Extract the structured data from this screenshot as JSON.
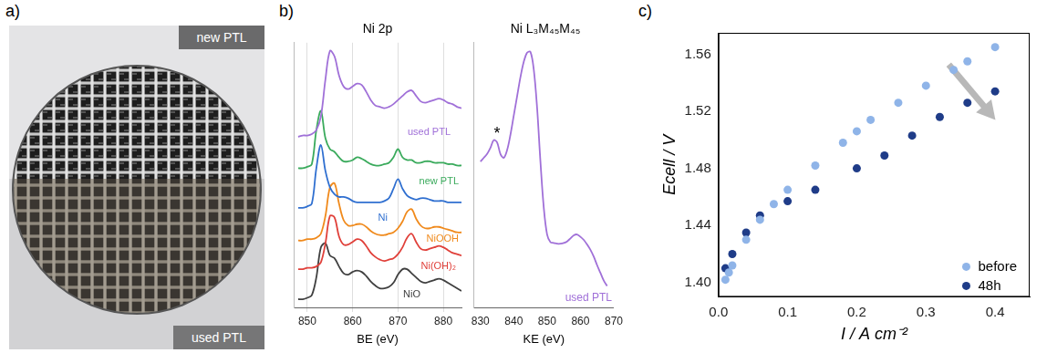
{
  "photo": {
    "panel": "a)",
    "labels": [
      "new PTL",
      "used PTL"
    ]
  },
  "chart_data": [
    {
      "type": "line",
      "panel": "b)",
      "title": "Ni 2p",
      "x_label": "BE (eV)",
      "x": [
        848,
        849,
        850,
        851,
        852,
        853,
        854,
        855,
        856,
        857,
        858,
        859,
        860,
        861,
        862,
        863,
        864,
        865,
        866,
        867,
        868,
        869,
        870,
        871,
        872,
        873,
        874,
        875,
        876,
        877,
        878,
        879,
        880,
        881,
        882,
        883,
        884
      ],
      "xlim": [
        847,
        884
      ],
      "xticks": [
        850,
        860,
        870,
        880
      ],
      "ylim": [
        8,
        202
      ],
      "tick_labels": "x",
      "grid": true,
      "series": [
        {
          "name": "used PTL",
          "color": "#a070d8",
          "values": [
            133,
            134,
            134,
            135,
            138,
            148,
            175,
            196,
            192,
            178,
            170,
            168,
            170,
            172,
            171,
            166,
            160,
            156,
            155,
            154,
            155,
            157,
            160,
            163,
            166,
            167,
            163,
            159,
            158,
            159,
            160,
            161,
            160,
            158,
            157,
            155,
            154
          ]
        },
        {
          "name": "new PTL",
          "color": "#3aaa5c",
          "values": [
            110,
            110,
            111,
            113,
            138,
            152,
            132,
            124,
            122,
            118,
            115,
            115,
            116,
            118,
            117,
            115,
            113,
            112,
            112,
            113,
            114,
            118,
            124,
            118,
            116,
            116,
            114,
            114,
            115,
            115,
            114,
            114,
            114,
            113,
            113,
            112,
            112
          ]
        },
        {
          "name": "Ni",
          "color": "#2f6fd0",
          "values": [
            81,
            81,
            82,
            84,
            110,
            127,
            108,
            96,
            91,
            89,
            89,
            88,
            86,
            85,
            85,
            85,
            85,
            85,
            85,
            86,
            88,
            95,
            102,
            95,
            90,
            88,
            87,
            88,
            88,
            87,
            86,
            86,
            86,
            85,
            85,
            85,
            85
          ]
        },
        {
          "name": "NiOOH",
          "color": "#f08a1c",
          "values": [
            57,
            57,
            58,
            58,
            59,
            62,
            75,
            96,
            99,
            84,
            72,
            68,
            68,
            69,
            69,
            67,
            64,
            62,
            61,
            61,
            62,
            63,
            66,
            71,
            78,
            80,
            73,
            68,
            66,
            66,
            67,
            67,
            66,
            65,
            64,
            63,
            63
          ]
        },
        {
          "name": "Ni(OH)₂",
          "color": "#e0403a",
          "values": [
            36,
            36,
            37,
            37,
            38,
            41,
            55,
            75,
            74,
            60,
            54,
            54,
            56,
            58,
            57,
            53,
            48,
            45,
            43,
            42,
            43,
            44,
            47,
            52,
            59,
            62,
            56,
            51,
            50,
            51,
            52,
            53,
            52,
            50,
            48,
            47,
            46
          ]
        },
        {
          "name": "NiO",
          "color": "#404040",
          "values": [
            14,
            14,
            15,
            17,
            30,
            52,
            55,
            46,
            44,
            38,
            33,
            32,
            34,
            35,
            34,
            31,
            27,
            24,
            22,
            22,
            23,
            26,
            32,
            36,
            36,
            33,
            30,
            27,
            26,
            27,
            28,
            29,
            28,
            26,
            24,
            22,
            20
          ]
        }
      ]
    },
    {
      "type": "line",
      "title": "Ni L₃M₄₅M₄₅",
      "x_label": "KE (eV)",
      "x": [
        830,
        831,
        832,
        833,
        834,
        835,
        836,
        837,
        838,
        839,
        840,
        841,
        842,
        843,
        844,
        845,
        846,
        847,
        848,
        849,
        850,
        851,
        852,
        853,
        854,
        855,
        856,
        857,
        858,
        859,
        860,
        861,
        862,
        863,
        864,
        865,
        866,
        867,
        868
      ],
      "xlim": [
        828,
        870
      ],
      "xticks": [
        830,
        840,
        850,
        860,
        870
      ],
      "ylim": [
        0,
        345
      ],
      "tick_labels": "x",
      "grid": false,
      "annotations": [
        {
          "text": "*",
          "x": 835
        }
      ],
      "series": [
        {
          "name": "used PTL",
          "color": "#a070d8",
          "values": [
            190,
            195,
            200,
            208,
            218,
            215,
            200,
            195,
            205,
            225,
            250,
            275,
            300,
            320,
            332,
            333,
            310,
            260,
            190,
            130,
            95,
            85,
            84,
            83,
            83,
            84,
            86,
            90,
            94,
            95,
            92,
            88,
            82,
            75,
            66,
            55,
            45,
            35,
            28
          ]
        }
      ]
    },
    {
      "type": "scatter",
      "panel": "c)",
      "x_label": "I / A cm⁻²",
      "y_label": "Ecell / V",
      "xlim": [
        0,
        0.45
      ],
      "xticks": [
        {
          "value": 0,
          "label": "0.0"
        },
        0.1,
        0.2,
        0.3,
        0.4
      ],
      "ylim": [
        1.39,
        1.575
      ],
      "yticks": [
        {
          "value": 1.4,
          "label": "1.40"
        },
        1.44,
        1.48,
        1.52,
        1.56
      ],
      "grid": false,
      "legend": "bottom right",
      "series": [
        {
          "name": "before",
          "color": "#8fb4e8",
          "marker": "circle",
          "x": [
            0.01,
            0.015,
            0.02,
            0.04,
            0.06,
            0.08,
            0.1,
            0.14,
            0.18,
            0.2,
            0.22,
            0.26,
            0.3,
            0.34,
            0.36,
            0.4
          ],
          "values": [
            1.402,
            1.407,
            1.412,
            1.43,
            1.444,
            1.455,
            1.465,
            1.482,
            1.498,
            1.506,
            1.514,
            1.526,
            1.538,
            1.549,
            1.555,
            1.565
          ]
        },
        {
          "name": "48h",
          "color": "#1f3c88",
          "marker": "circle",
          "x": [
            0.01,
            0.02,
            0.04,
            0.06,
            0.1,
            0.14,
            0.2,
            0.24,
            0.28,
            0.32,
            0.36,
            0.4
          ],
          "values": [
            1.41,
            1.42,
            1.435,
            1.447,
            1.457,
            1.465,
            1.48,
            1.489,
            1.503,
            1.516,
            1.526,
            1.534
          ]
        }
      ]
    }
  ]
}
